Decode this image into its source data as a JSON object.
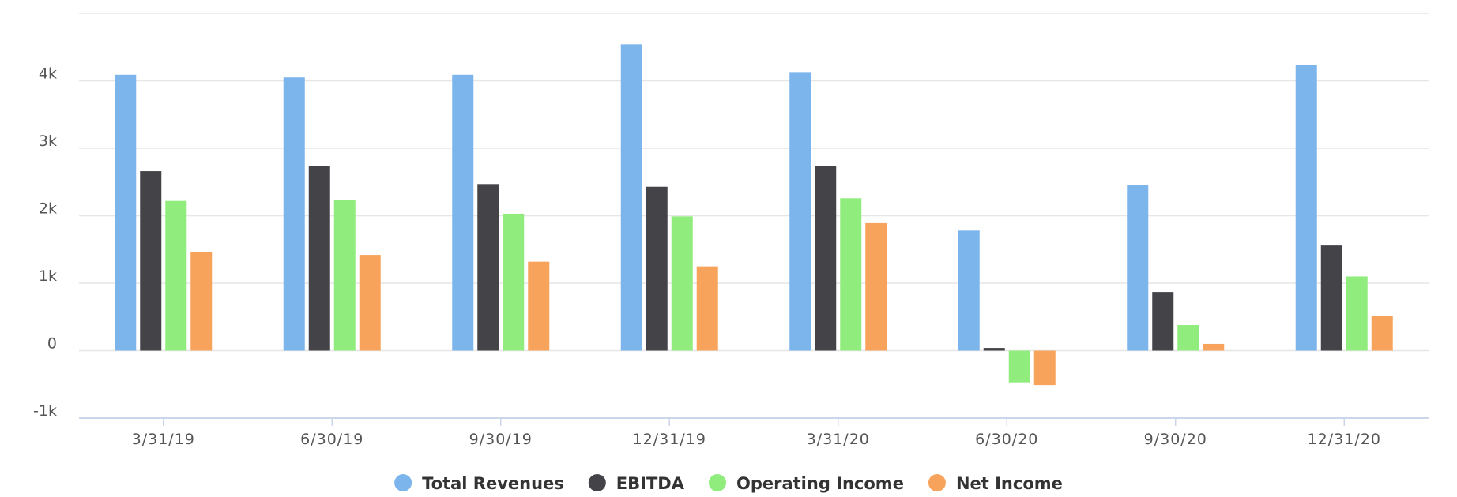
{
  "chart_data": {
    "type": "bar",
    "title": "",
    "xlabel": "",
    "ylabel": "",
    "categories": [
      "3/31/19",
      "6/30/19",
      "9/30/19",
      "12/31/19",
      "3/31/20",
      "6/30/20",
      "9/30/20",
      "12/31/20"
    ],
    "series": [
      {
        "name": "Total Revenues",
        "color": "#7cb5ec",
        "values": [
          4090,
          4050,
          4090,
          4540,
          4130,
          1780,
          2450,
          4240
        ]
      },
      {
        "name": "EBITDA",
        "color": "#434348",
        "values": [
          2660,
          2740,
          2470,
          2430,
          2740,
          40,
          870,
          1560
        ]
      },
      {
        "name": "Operating Income",
        "color": "#90ed7d",
        "values": [
          2220,
          2240,
          2030,
          1990,
          2260,
          -470,
          380,
          1100
        ]
      },
      {
        "name": "Net Income",
        "color": "#f7a35c",
        "values": [
          1460,
          1420,
          1320,
          1250,
          1890,
          -510,
          100,
          510
        ]
      }
    ],
    "y_ticks": [
      {
        "value": -1000,
        "label": "-1k"
      },
      {
        "value": 0,
        "label": "0"
      },
      {
        "value": 1000,
        "label": "1k"
      },
      {
        "value": 2000,
        "label": "2k"
      },
      {
        "value": 3000,
        "label": "3k"
      },
      {
        "value": 4000,
        "label": "4k"
      },
      {
        "value": 5000,
        "label": ""
      }
    ],
    "ylim": [
      -1000,
      5000
    ],
    "grid": true,
    "legend": "bottom-center"
  }
}
